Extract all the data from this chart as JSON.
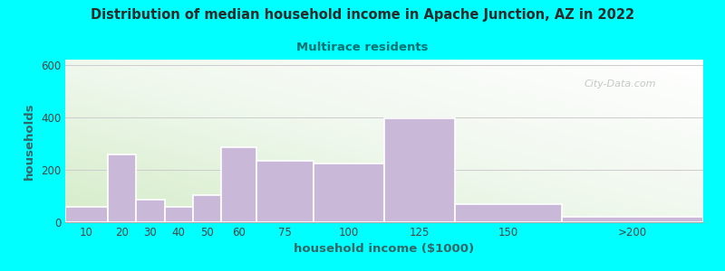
{
  "title": "Distribution of median household income in Apache Junction, AZ in 2022",
  "subtitle": "Multirace residents",
  "xlabel": "household income ($1000)",
  "ylabel": "households",
  "background_outer": "#00FFFF",
  "bar_color": "#c9b8d8",
  "bar_edge_color": "#ffffff",
  "title_color": "#2a2a2a",
  "subtitle_color": "#007070",
  "axis_label_color": "#336666",
  "tick_color": "#444444",
  "categories": [
    "10",
    "20",
    "30",
    "40",
    "50",
    "60",
    "75",
    "100",
    "125",
    "150",
    ">200"
  ],
  "values": [
    60,
    260,
    85,
    60,
    105,
    285,
    235,
    225,
    395,
    70,
    20
  ],
  "bin_edges": [
    0,
    15,
    25,
    35,
    45,
    55,
    67.5,
    87.5,
    112.5,
    137.5,
    175,
    225
  ],
  "ylim": [
    0,
    620
  ],
  "yticks": [
    0,
    200,
    400,
    600
  ],
  "watermark": "City-Data.com"
}
